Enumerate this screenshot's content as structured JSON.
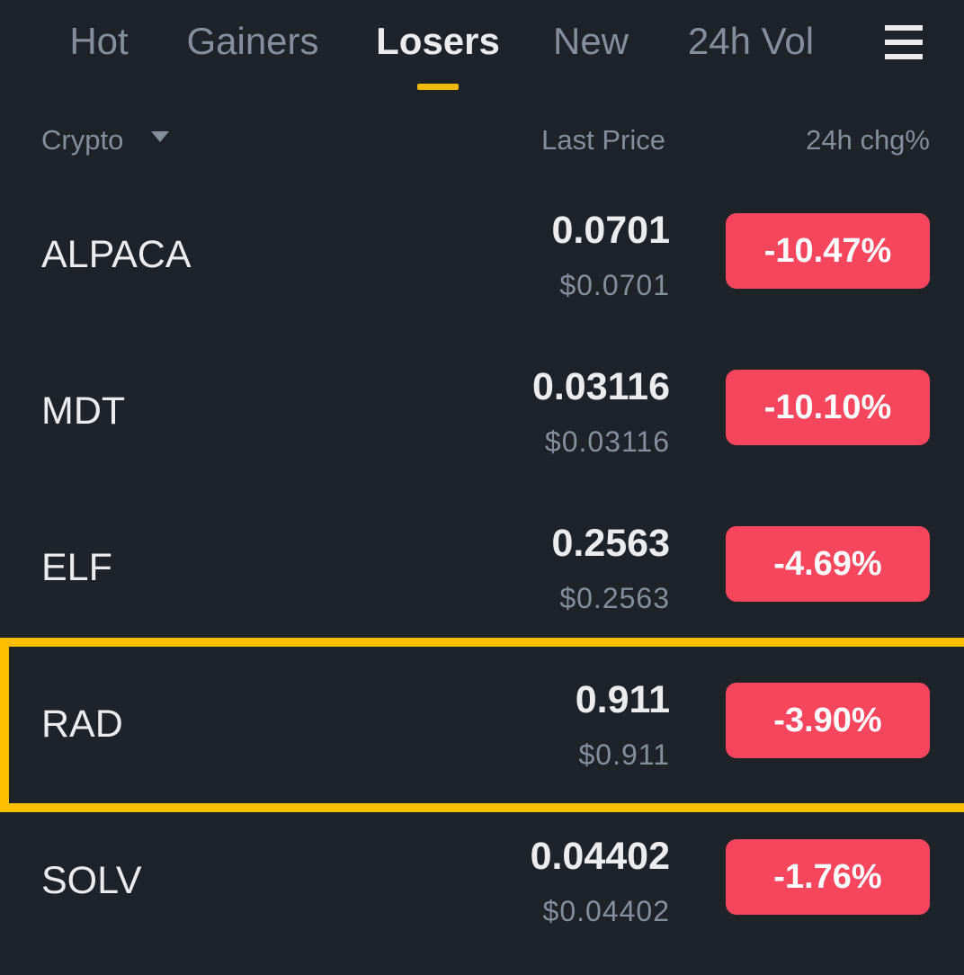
{
  "tabs": [
    "Hot",
    "Gainers",
    "Losers",
    "New",
    "24h Vol"
  ],
  "header": {
    "crypto": "Crypto",
    "last_price": "Last Price",
    "change": "24h chg%"
  },
  "rows": [
    {
      "name": "ALPACA",
      "price": "0.0701",
      "usd_price": "$0.0701",
      "change": "-10.47%"
    },
    {
      "name": "MDT",
      "price": "0.03116",
      "usd_price": "$0.03116",
      "change": "-10.10%"
    },
    {
      "name": "ELF",
      "price": "0.2563",
      "usd_price": "$0.2563",
      "change": "-4.69%"
    },
    {
      "name": "RAD",
      "price": "0.911",
      "usd_price": "$0.911",
      "change": "-3.90%"
    },
    {
      "name": "SOLV",
      "price": "0.04402",
      "usd_price": "$0.04402",
      "change": "-1.76%"
    }
  ]
}
